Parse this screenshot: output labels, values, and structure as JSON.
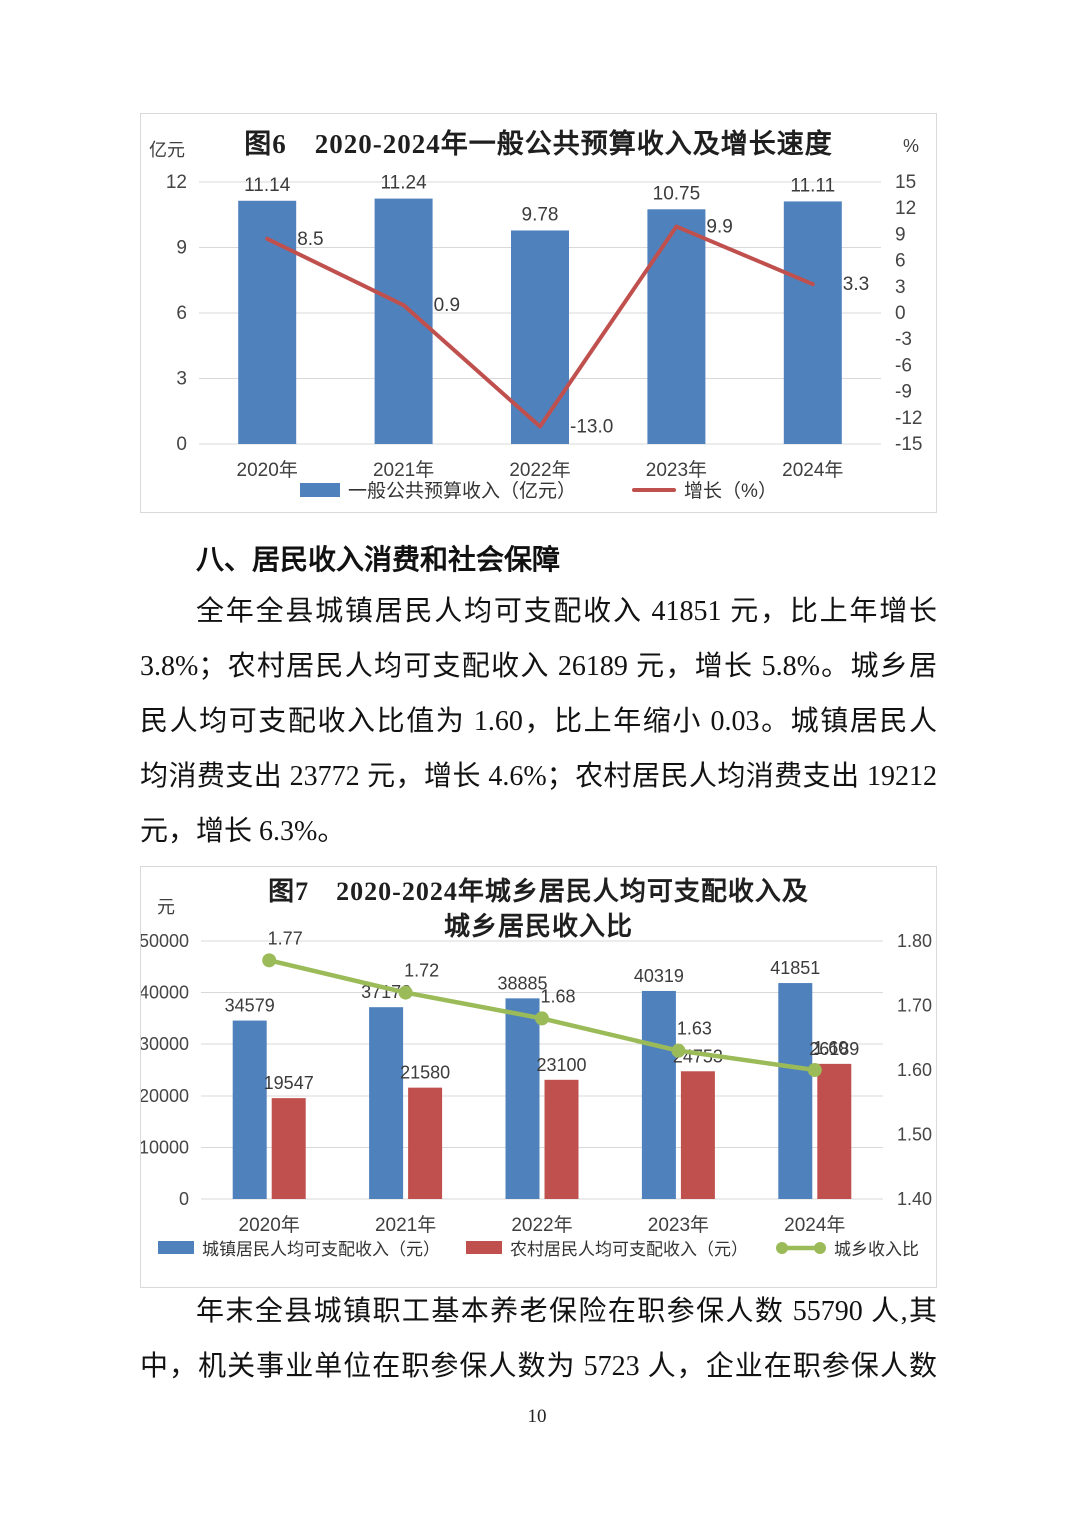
{
  "page": {
    "number": "10"
  },
  "section": {
    "heading": "八、居民收入消费和社会保障",
    "paragraph1_lines": [
      "全年全县城镇居民人均可支配收入 41851 元，比上年增长",
      "3.8%；农村居民人均可支配收入 26189 元，增长 5.8%。城乡居",
      "民人均可支配收入比值为 1.60，比上年缩小 0.03。城镇居民人",
      "均消费支出 23772 元，增长 4.6%；农村居民人均消费支出 19212",
      "元，增长 6.3%。"
    ],
    "paragraph2_lines": [
      "年末全县城镇职工基本养老保险在职参保人数 55790 人,其",
      "中，机关事业单位在职参保人数为 5723 人，企业在职参保人数"
    ]
  },
  "chart_data": [
    {
      "type": "bar+line",
      "title_lines": [
        "图6　2020-2024年一般公共预算收入及增长速度"
      ],
      "left_axis_unit": "亿元",
      "right_axis_unit": "%",
      "categories": [
        "2020年",
        "2021年",
        "2022年",
        "2023年",
        "2024年"
      ],
      "left_axis": {
        "min": 0,
        "max": 12,
        "ticks": [
          "12",
          "9",
          "6",
          "3",
          "0"
        ]
      },
      "right_axis": {
        "min": -15,
        "max": 15,
        "ticks": [
          "15",
          "12",
          "9",
          "6",
          "3",
          "0",
          "-3",
          "-6",
          "-9",
          "-12",
          "-15"
        ]
      },
      "grid": true,
      "legend_position": "bottom",
      "series": [
        {
          "name": "一般公共预算收入（亿元）",
          "kind": "bar",
          "axis": "left",
          "color": "#4f81bd",
          "values": [
            11.14,
            11.24,
            9.78,
            10.75,
            11.11
          ],
          "labels": [
            "11.14",
            "11.24",
            "9.78",
            "10.75",
            "11.11"
          ]
        },
        {
          "name": "增长（%）",
          "kind": "line",
          "axis": "right",
          "color": "#c0504d",
          "marker": false,
          "values": [
            8.5,
            0.9,
            -13.0,
            9.9,
            3.3
          ],
          "labels": [
            "8.5",
            "0.9",
            "-13.0",
            "9.9",
            "3.3"
          ]
        }
      ]
    },
    {
      "type": "bar+line",
      "title_lines": [
        "图7　2020-2024年城乡居民人均可支配收入及",
        "城乡居民收入比"
      ],
      "left_axis_unit": "元",
      "right_axis_unit": "",
      "categories": [
        "2020年",
        "2021年",
        "2022年",
        "2023年",
        "2024年"
      ],
      "left_axis": {
        "min": 0,
        "max": 50000,
        "ticks": [
          "50000",
          "40000",
          "30000",
          "20000",
          "10000",
          "0"
        ]
      },
      "right_axis": {
        "min": 1.4,
        "max": 1.8,
        "ticks": [
          "1.80",
          "1.70",
          "1.60",
          "1.50",
          "1.40"
        ]
      },
      "grid": true,
      "legend_position": "bottom",
      "series": [
        {
          "name": "城镇居民人均可支配收入（元）",
          "kind": "bar",
          "axis": "left",
          "color": "#4f81bd",
          "values": [
            34579,
            37172,
            38885,
            40319,
            41851
          ],
          "labels": [
            "34579",
            "37172",
            "38885",
            "40319",
            "41851"
          ]
        },
        {
          "name": "农村居民人均可支配收入（元）",
          "kind": "bar",
          "axis": "left",
          "color": "#c0504d",
          "values": [
            19547,
            21580,
            23100,
            24753,
            26189
          ],
          "labels": [
            "19547",
            "21580",
            "23100",
            "24753",
            "26189"
          ]
        },
        {
          "name": "城乡收入比",
          "kind": "line",
          "axis": "right",
          "color": "#9bbb59",
          "marker": true,
          "values": [
            1.77,
            1.72,
            1.68,
            1.63,
            1.6
          ],
          "labels": [
            "1.77",
            "1.72",
            "1.68",
            "1.63",
            "1.60"
          ]
        }
      ]
    }
  ]
}
